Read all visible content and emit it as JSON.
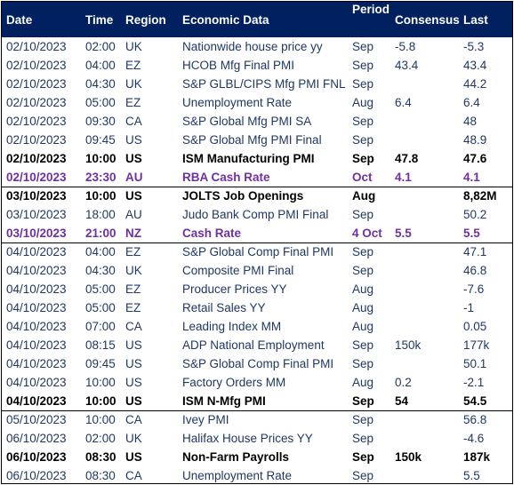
{
  "headers": {
    "date": "Date",
    "time": "Time",
    "region": "Region",
    "economic_data": "Economic Data",
    "period": "Period",
    "consensus": "Consensus",
    "last": "Last"
  },
  "rows": [
    {
      "date": "02/10/2023",
      "time": "02:00",
      "region": "UK",
      "data": "Nationwide house price yy",
      "period": "Sep",
      "consensus": "-5.8",
      "last": "-5.3",
      "style": "normal"
    },
    {
      "date": "02/10/2023",
      "time": "04:00",
      "region": "EZ",
      "data": "HCOB Mfg Final PMI",
      "period": "Sep",
      "consensus": "43.4",
      "last": "43.4",
      "style": "normal"
    },
    {
      "date": "02/10/2023",
      "time": "04:30",
      "region": "UK",
      "data": "S&P GLBL/CIPS Mfg PMI FNL",
      "period": "Sep",
      "consensus": "",
      "last": "44.2",
      "style": "normal"
    },
    {
      "date": "02/10/2023",
      "time": "05:00",
      "region": "EZ",
      "data": "Unemployment Rate",
      "period": "Aug",
      "consensus": "6.4",
      "last": "6.4",
      "style": "normal"
    },
    {
      "date": "02/10/2023",
      "time": "09:30",
      "region": "CA",
      "data": "S&P Global Mfg PMI SA",
      "period": "Sep",
      "consensus": "",
      "last": "48",
      "style": "normal"
    },
    {
      "date": "02/10/2023",
      "time": "09:45",
      "region": "US",
      "data": "S&P Global Mfg PMI Final",
      "period": "Sep",
      "consensus": "",
      "last": "48.9",
      "style": "normal"
    },
    {
      "date": "02/10/2023",
      "time": "10:00",
      "region": "US",
      "data": "ISM Manufacturing PMI",
      "period": "Sep",
      "consensus": "47.8",
      "last": "47.6",
      "style": "bold"
    },
    {
      "date": "02/10/2023",
      "time": "23:30",
      "region": "AU",
      "data": "RBA Cash Rate",
      "period": "Oct",
      "consensus": "4.1",
      "last": "4.1",
      "style": "purple",
      "sep": true
    },
    {
      "date": "03/10/2023",
      "time": "10:00",
      "region": "US",
      "data": "JOLTS Job Openings",
      "period": "Aug",
      "consensus": "",
      "last": "8,82M",
      "style": "bold"
    },
    {
      "date": "03/10/2023",
      "time": "18:00",
      "region": "AU",
      "data": "Judo Bank Comp PMI Final",
      "period": "Sep",
      "consensus": "",
      "last": "50.2",
      "style": "normal"
    },
    {
      "date": "03/10/2023",
      "time": "21:00",
      "region": "NZ",
      "data": "Cash Rate",
      "period": "4 Oct",
      "consensus": "5.5",
      "last": "5.5",
      "style": "purple",
      "sep": true
    },
    {
      "date": "04/10/2023",
      "time": "04:00",
      "region": "EZ",
      "data": "S&P Global Comp Final PMI",
      "period": "Sep",
      "consensus": "",
      "last": "47.1",
      "style": "normal"
    },
    {
      "date": "04/10/2023",
      "time": "04:30",
      "region": "UK",
      "data": "Composite PMI Final",
      "period": "Sep",
      "consensus": "",
      "last": "46.8",
      "style": "normal"
    },
    {
      "date": "04/10/2023",
      "time": "05:00",
      "region": "EZ",
      "data": "Producer Prices YY",
      "period": "Aug",
      "consensus": "",
      "last": "-7.6",
      "style": "normal"
    },
    {
      "date": "04/10/2023",
      "time": "05:00",
      "region": "EZ",
      "data": "Retail Sales YY",
      "period": "Aug",
      "consensus": "",
      "last": "-1",
      "style": "normal"
    },
    {
      "date": "04/10/2023",
      "time": "07:00",
      "region": "CA",
      "data": "Leading Index MM",
      "period": "Aug",
      "consensus": "",
      "last": "0.05",
      "style": "normal"
    },
    {
      "date": "04/10/2023",
      "time": "08:15",
      "region": "US",
      "data": "ADP National Employment",
      "period": "Sep",
      "consensus": "150k",
      "last": "177k",
      "style": "normal"
    },
    {
      "date": "04/10/2023",
      "time": "09:45",
      "region": "US",
      "data": "S&P Global Comp Final PMI",
      "period": "Sep",
      "consensus": "",
      "last": "50.1",
      "style": "normal"
    },
    {
      "date": "04/10/2023",
      "time": "10:00",
      "region": "US",
      "data": "Factory Orders MM",
      "period": "Aug",
      "consensus": "0.2",
      "last": "-2.1",
      "style": "normal"
    },
    {
      "date": "04/10/2023",
      "time": "10:00",
      "region": "US",
      "data": "ISM N-Mfg PMI",
      "period": "Sep",
      "consensus": "54",
      "last": "54.5",
      "style": "bold",
      "sep": true
    },
    {
      "date": "05/10/2023",
      "time": "10:00",
      "region": "CA",
      "data": "Ivey PMI",
      "period": "Sep",
      "consensus": "",
      "last": "56.8",
      "style": "normal"
    },
    {
      "date": "06/10/2023",
      "time": "02:00",
      "region": "UK",
      "data": "Halifax House Prices YY",
      "period": "Sep",
      "consensus": "",
      "last": "-4.6",
      "style": "normal"
    },
    {
      "date": "06/10/2023",
      "time": "08:30",
      "region": "US",
      "data": "Non-Farm Payrolls",
      "period": "Sep",
      "consensus": "150k",
      "last": "187k",
      "style": "bold"
    },
    {
      "date": "06/10/2023",
      "time": "08:30",
      "region": "CA",
      "data": "Unemployment Rate",
      "period": "Sep",
      "consensus": "",
      "last": "5.5",
      "style": "normal"
    }
  ],
  "colors": {
    "header_bg": "#002060",
    "header_text": "#ffffff",
    "normal_text": "#1f3864",
    "bold_text": "#000000",
    "purple_text": "#7030a0"
  }
}
